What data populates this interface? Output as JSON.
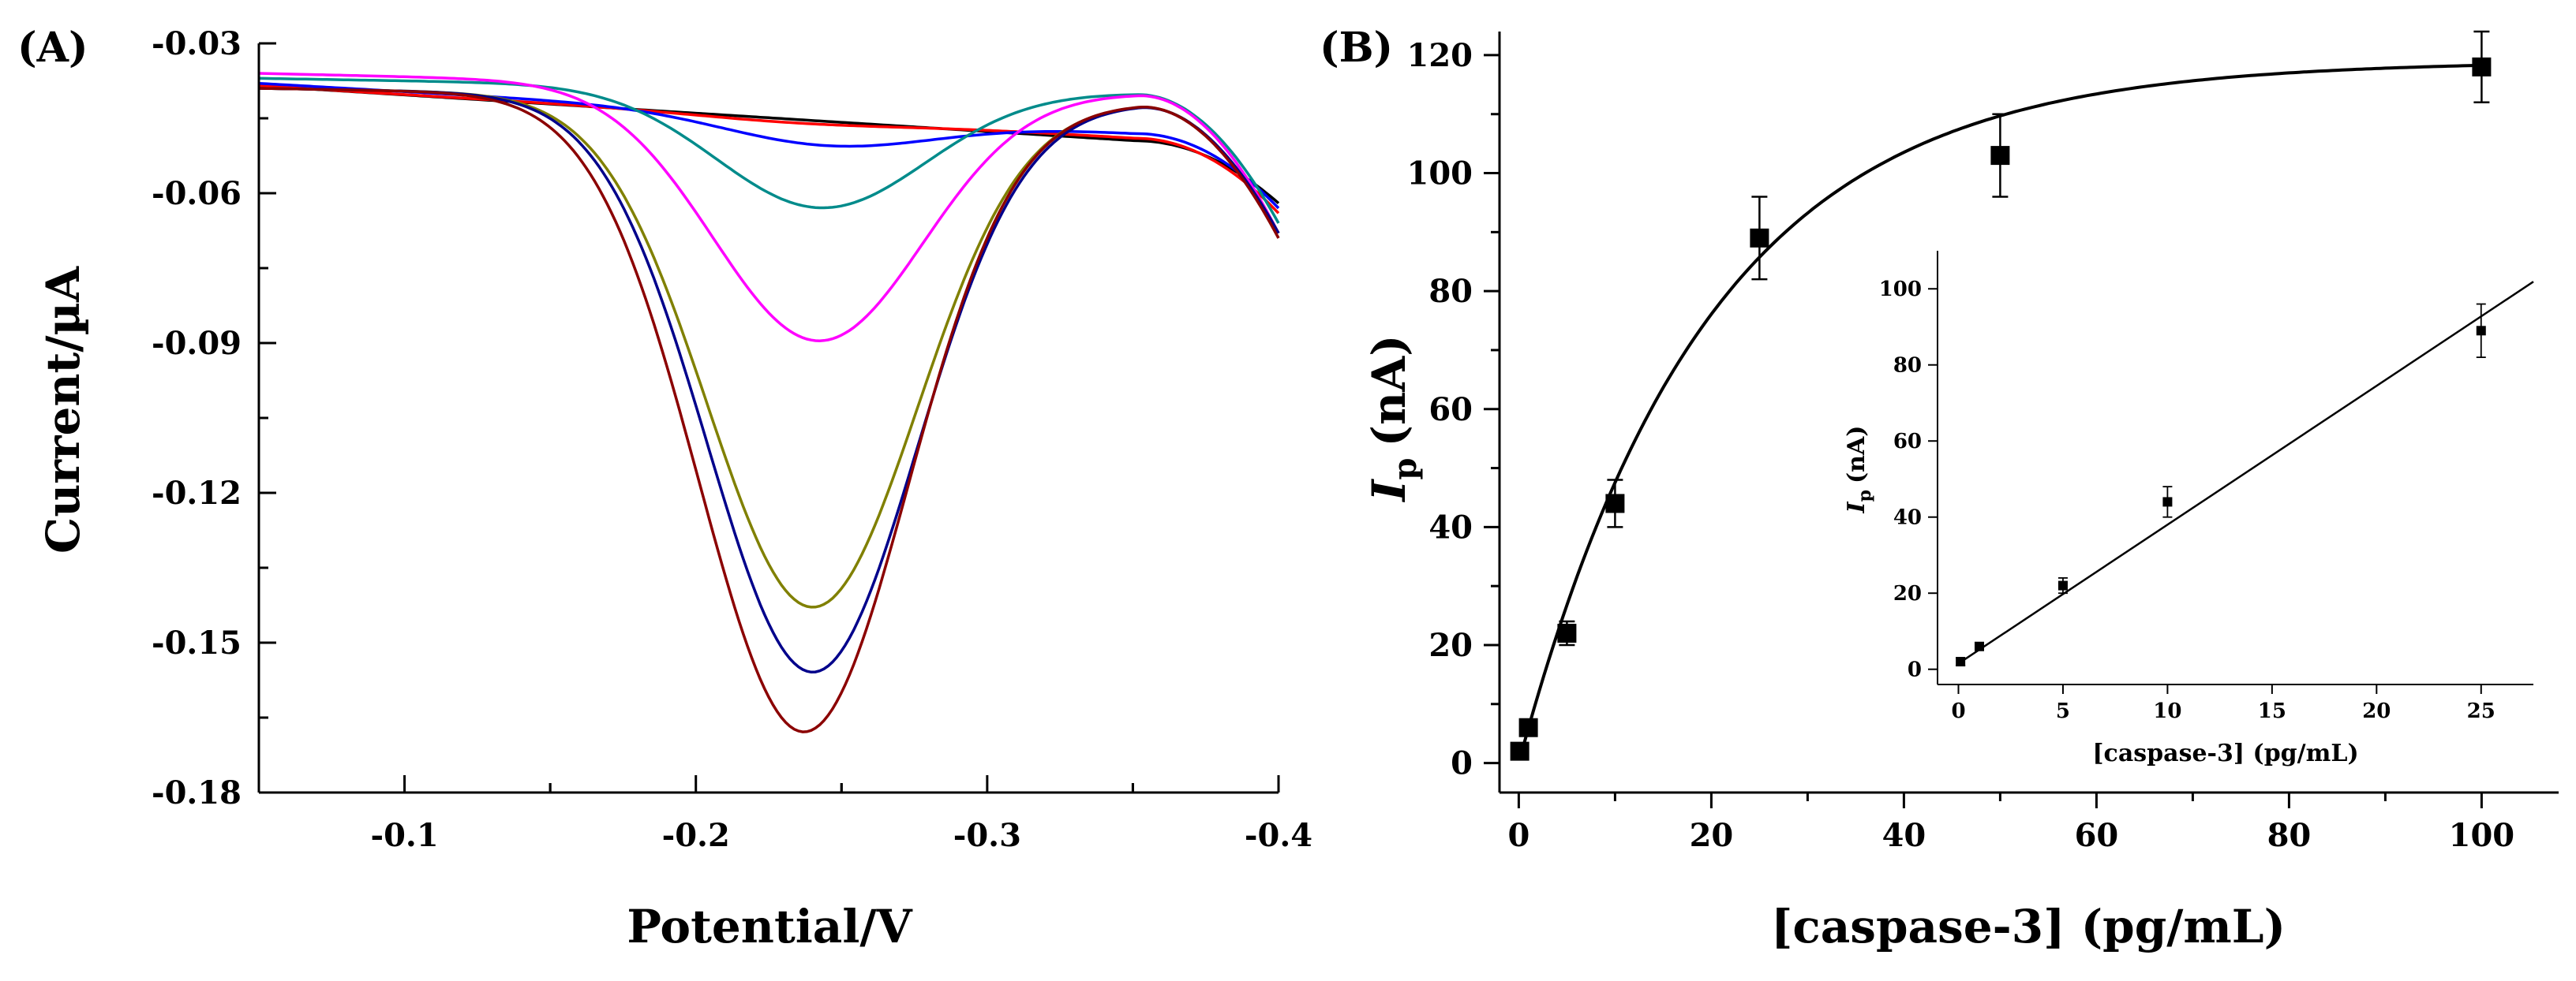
{
  "chart_data": [
    {
      "panel": "(A)",
      "type": "line",
      "xlabel": "Potential/V",
      "ylabel": "Current/µA",
      "xlim": [
        -0.05,
        -0.4
      ],
      "ylim": [
        -0.18,
        -0.03
      ],
      "xticks": [
        -0.1,
        -0.2,
        -0.3,
        -0.4
      ],
      "xtick_labels": [
        "-0.1",
        "-0.2",
        "-0.3",
        "-0.4"
      ],
      "yticks": [
        -0.03,
        -0.06,
        -0.09,
        -0.12,
        -0.15,
        -0.18
      ],
      "ytick_labels": [
        "-0.03",
        "-0.06",
        "-0.09",
        "-0.12",
        "-0.15",
        "-0.18"
      ],
      "series": [
        {
          "color": "#000000",
          "start": -0.0385,
          "peak_x": -0.235,
          "depth": 0,
          "end": -0.062,
          "elbow": -0.0495,
          "tail": -0.1
        },
        {
          "color": "#ff0000",
          "start": -0.0385,
          "peak_x": -0.235,
          "depth": 0.001,
          "end": -0.064,
          "elbow": -0.049,
          "tail": -0.09
        },
        {
          "color": "#0000ff",
          "start": -0.038,
          "peak_x": -0.245,
          "depth": 0.006,
          "end": -0.063,
          "elbow": -0.048,
          "tail": -0.08
        },
        {
          "color": "#008b8b",
          "start": -0.037,
          "peak_x": -0.243,
          "depth": 0.024,
          "end": -0.066,
          "elbow": -0.04,
          "tail": 0.01
        },
        {
          "color": "#ff00ff",
          "start": -0.036,
          "peak_x": -0.242,
          "depth": 0.051,
          "end": -0.068,
          "elbow": -0.04,
          "tail": 0.02
        },
        {
          "color": "#808000",
          "start": -0.039,
          "peak_x": -0.24,
          "depth": 0.102,
          "end": -0.068,
          "elbow": -0.042,
          "tail": 0.03
        },
        {
          "color": "#00008b",
          "start": -0.039,
          "peak_x": -0.24,
          "depth": 0.115,
          "end": -0.068,
          "elbow": -0.042,
          "tail": 0.03
        },
        {
          "color": "#8b0000",
          "start": -0.039,
          "peak_x": -0.237,
          "depth": 0.127,
          "end": -0.069,
          "elbow": -0.042,
          "tail": 0.03
        }
      ]
    },
    {
      "panel": "(B)",
      "type": "scatter",
      "xlabel": "[caspase-3] (pg/mL)",
      "ylabel": "I",
      "ylabel_sub": "p",
      "ylabel_unit": "(nA)",
      "xlim": [
        -2,
        108
      ],
      "ylim": [
        -5,
        124
      ],
      "xticks": [
        0,
        20,
        40,
        60,
        80,
        100
      ],
      "xtick_labels": [
        "0",
        "20",
        "40",
        "60",
        "80",
        "100"
      ],
      "yticks": [
        0,
        20,
        40,
        60,
        80,
        100,
        120
      ],
      "ytick_labels": [
        "0",
        "20",
        "40",
        "60",
        "80",
        "100",
        "120"
      ],
      "points": [
        {
          "x": 0.1,
          "y": 2,
          "err": 1
        },
        {
          "x": 1,
          "y": 6,
          "err": 1
        },
        {
          "x": 5,
          "y": 22,
          "err": 2
        },
        {
          "x": 10,
          "y": 44,
          "err": 4
        },
        {
          "x": 25,
          "y": 89,
          "err": 7
        },
        {
          "x": 50,
          "y": 103,
          "err": 7
        },
        {
          "x": 100,
          "y": 118,
          "err": 6
        }
      ],
      "fit": {
        "type": "exponential",
        "a": 119,
        "k": 0.051
      }
    },
    {
      "panel": "inset",
      "type": "scatter",
      "xlabel": "[caspase-3] (pg/mL)",
      "ylabel": "I",
      "ylabel_sub": "p",
      "ylabel_unit": "(nA)",
      "xlim": [
        -1,
        27.5
      ],
      "ylim": [
        -4,
        110
      ],
      "xticks": [
        0,
        5,
        10,
        15,
        20,
        25
      ],
      "xtick_labels": [
        "0",
        "5",
        "10",
        "15",
        "20",
        "25"
      ],
      "yticks": [
        0,
        20,
        40,
        60,
        80,
        100
      ],
      "ytick_labels": [
        "0",
        "20",
        "40",
        "60",
        "80",
        "100"
      ],
      "points": [
        {
          "x": 0.1,
          "y": 2,
          "err": 1
        },
        {
          "x": 1,
          "y": 6,
          "err": 1
        },
        {
          "x": 5,
          "y": 22,
          "err": 2
        },
        {
          "x": 10,
          "y": 44,
          "err": 4
        },
        {
          "x": 25,
          "y": 89,
          "err": 7
        }
      ],
      "fit": {
        "type": "linear",
        "slope": 3.65,
        "intercept": 1.5,
        "x_range": [
          0,
          27.5
        ]
      }
    }
  ]
}
